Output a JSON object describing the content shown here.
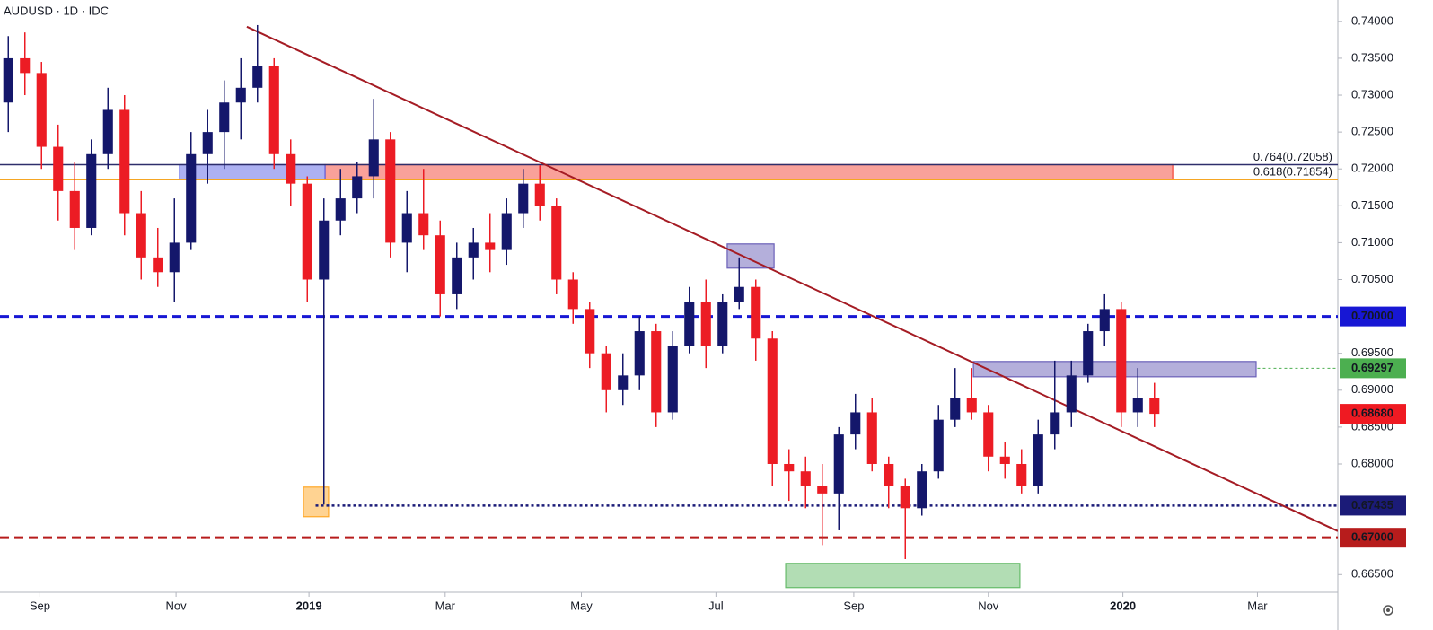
{
  "chart_data": {
    "type": "candlestick",
    "title": "AUDUSD · 1D · IDC",
    "up_color": "#14176b",
    "down_color": "#ec1c24",
    "x": [
      0,
      1,
      2,
      3,
      4,
      5,
      6,
      7,
      8,
      9,
      10,
      11,
      12,
      13,
      14,
      15,
      16,
      17,
      18,
      19,
      20,
      21,
      22,
      23,
      24,
      25,
      26,
      27,
      28,
      29,
      30,
      31,
      32,
      33,
      34,
      35,
      36,
      37,
      38,
      39,
      40,
      41,
      42,
      43,
      44,
      45,
      46,
      47,
      48,
      49,
      50,
      51,
      52,
      53,
      54,
      55,
      56,
      57,
      58,
      59,
      60,
      61,
      62,
      63,
      64,
      65,
      66,
      67,
      68,
      69
    ],
    "open": [
      0.729,
      0.735,
      0.733,
      0.723,
      0.717,
      0.712,
      0.722,
      0.728,
      0.714,
      0.708,
      0.706,
      0.71,
      0.722,
      0.725,
      0.729,
      0.731,
      0.734,
      0.722,
      0.718,
      0.705,
      0.713,
      0.716,
      0.719,
      0.724,
      0.71,
      0.714,
      0.711,
      0.703,
      0.708,
      0.71,
      0.709,
      0.714,
      0.718,
      0.715,
      0.705,
      0.701,
      0.695,
      0.69,
      0.692,
      0.698,
      0.687,
      0.696,
      0.702,
      0.696,
      0.702,
      0.704,
      0.697,
      0.68,
      0.679,
      0.677,
      0.676,
      0.684,
      0.687,
      0.68,
      0.677,
      0.674,
      0.679,
      0.686,
      0.689,
      0.687,
      0.681,
      0.68,
      0.677,
      0.684,
      0.687,
      0.692,
      0.698,
      0.701,
      0.687,
      0.689
    ],
    "high": [
      0.738,
      0.7385,
      0.7345,
      0.726,
      0.721,
      0.724,
      0.731,
      0.73,
      0.717,
      0.712,
      0.716,
      0.725,
      0.728,
      0.732,
      0.735,
      0.7395,
      0.735,
      0.724,
      0.719,
      0.716,
      0.72,
      0.721,
      0.7295,
      0.725,
      0.717,
      0.72,
      0.713,
      0.71,
      0.712,
      0.714,
      0.716,
      0.72,
      0.7205,
      0.716,
      0.706,
      0.702,
      0.696,
      0.695,
      0.7,
      0.699,
      0.698,
      0.704,
      0.705,
      0.703,
      0.708,
      0.705,
      0.698,
      0.682,
      0.681,
      0.68,
      0.685,
      0.6895,
      0.689,
      0.681,
      0.678,
      0.68,
      0.688,
      0.693,
      0.693,
      0.688,
      0.683,
      0.682,
      0.686,
      0.694,
      0.694,
      0.699,
      0.703,
      0.702,
      0.693,
      0.691
    ],
    "low": [
      0.725,
      0.73,
      0.72,
      0.713,
      0.709,
      0.711,
      0.72,
      0.711,
      0.705,
      0.704,
      0.702,
      0.709,
      0.718,
      0.72,
      0.724,
      0.729,
      0.72,
      0.715,
      0.702,
      0.6745,
      0.711,
      0.714,
      0.716,
      0.708,
      0.706,
      0.709,
      0.7,
      0.701,
      0.705,
      0.706,
      0.707,
      0.712,
      0.713,
      0.703,
      0.699,
      0.693,
      0.687,
      0.688,
      0.69,
      0.685,
      0.686,
      0.695,
      0.693,
      0.695,
      0.701,
      0.694,
      0.677,
      0.675,
      0.674,
      0.669,
      0.671,
      0.682,
      0.679,
      0.674,
      0.6671,
      0.673,
      0.678,
      0.685,
      0.686,
      0.679,
      0.678,
      0.676,
      0.676,
      0.682,
      0.685,
      0.691,
      0.696,
      0.685,
      0.685,
      0.685
    ],
    "close": [
      0.735,
      0.733,
      0.723,
      0.717,
      0.712,
      0.722,
      0.728,
      0.714,
      0.708,
      0.706,
      0.71,
      0.722,
      0.725,
      0.729,
      0.731,
      0.734,
      0.722,
      0.718,
      0.705,
      0.713,
      0.716,
      0.719,
      0.724,
      0.71,
      0.714,
      0.711,
      0.703,
      0.708,
      0.71,
      0.709,
      0.714,
      0.718,
      0.715,
      0.705,
      0.701,
      0.695,
      0.69,
      0.692,
      0.698,
      0.687,
      0.696,
      0.702,
      0.696,
      0.702,
      0.704,
      0.697,
      0.68,
      0.679,
      0.677,
      0.676,
      0.684,
      0.687,
      0.68,
      0.677,
      0.674,
      0.679,
      0.686,
      0.689,
      0.687,
      0.681,
      0.68,
      0.677,
      0.684,
      0.687,
      0.692,
      0.698,
      0.701,
      0.687,
      0.689,
      0.6868
    ],
    "xlim": [
      -0.5,
      80.04
    ],
    "xticks": [
      {
        "value": 1.9,
        "label": "Sep"
      },
      {
        "value": 10.1,
        "label": "Nov"
      },
      {
        "value": 18.1,
        "label": "2019"
      },
      {
        "value": 26.3,
        "label": "Mar"
      },
      {
        "value": 34.5,
        "label": "May"
      },
      {
        "value": 42.6,
        "label": "Jul"
      },
      {
        "value": 50.9,
        "label": "Sep"
      },
      {
        "value": 59.0,
        "label": "Nov"
      },
      {
        "value": 67.1,
        "label": "2020"
      },
      {
        "value": 75.2,
        "label": "Mar"
      }
    ],
    "ylim": [
      0.6626,
      0.7429
    ],
    "yticks": [
      {
        "value": 0.74,
        "label": "0.74000"
      },
      {
        "value": 0.735,
        "label": "0.73500"
      },
      {
        "value": 0.73,
        "label": "0.73000"
      },
      {
        "value": 0.725,
        "label": "0.72500"
      },
      {
        "value": 0.72,
        "label": "0.72000"
      },
      {
        "value": 0.715,
        "label": "0.71500"
      },
      {
        "value": 0.71,
        "label": "0.71000"
      },
      {
        "value": 0.705,
        "label": "0.70500"
      },
      {
        "value": 0.695,
        "label": "0.69500"
      },
      {
        "value": 0.69,
        "label": "0.69000"
      },
      {
        "value": 0.685,
        "label": "0.68500"
      },
      {
        "value": 0.68,
        "label": "0.68000"
      },
      {
        "value": 0.665,
        "label": "0.66500"
      }
    ],
    "levels": [
      {
        "value": 0.72058,
        "label": "0.764(0.72058)",
        "color": "#2e2e6b",
        "style": "solid",
        "label_position": "line",
        "start": -0.5
      },
      {
        "value": 0.71854,
        "label": "0.618(0.71854)",
        "color": "#f5a623",
        "style": "solid",
        "label_position": "line",
        "start": -0.5
      },
      {
        "value": 0.7,
        "label": "0.70000",
        "color": "#1717d4",
        "style": "dashed",
        "label_position": "axis",
        "start": -0.5
      },
      {
        "value": 0.69297,
        "label": "0.69297",
        "color": "#4caf50",
        "style": "dotted",
        "label_position": "axis",
        "start": 75.2
      },
      {
        "value": 0.6868,
        "label": "0.68680",
        "color": "#ef1a22",
        "style": "none",
        "label_position": "axis",
        "start": 80.04
      },
      {
        "value": 0.67435,
        "label": "0.67435",
        "color": "#1b1b78",
        "style": "dotted",
        "label_position": "axis",
        "start": 18.5
      },
      {
        "value": 0.67,
        "label": "0.67000",
        "color": "#b71c1c",
        "style": "dashed",
        "label_position": "axis",
        "start": -0.5
      }
    ],
    "zones": [
      {
        "x": [
          19.07,
          70.1
        ],
        "y": [
          0.72058,
          0.71854
        ],
        "color": "#f44336"
      },
      {
        "x": [
          10.31,
          19.07
        ],
        "y": [
          0.72058,
          0.71854
        ],
        "color": "#5c63e6"
      },
      {
        "x": [
          43.28,
          46.1
        ],
        "y": [
          0.70983,
          0.70655
        ],
        "color": "#6a5fb8"
      },
      {
        "x": [
          58.1,
          75.12
        ],
        "y": [
          0.69389,
          0.69182
        ],
        "color": "#6a5fb8"
      },
      {
        "x": [
          17.77,
          19.28
        ],
        "y": [
          0.67686,
          0.67285
        ],
        "color": "#ffa726"
      },
      {
        "x": [
          46.8,
          60.9
        ],
        "y": [
          0.66652,
          0.66324
        ],
        "color": "#66bb6a"
      }
    ],
    "trendline": {
      "x": [
        14.36,
        80.04
      ],
      "y": [
        0.73927,
        0.6709
      ],
      "color": "#a51c24"
    }
  }
}
